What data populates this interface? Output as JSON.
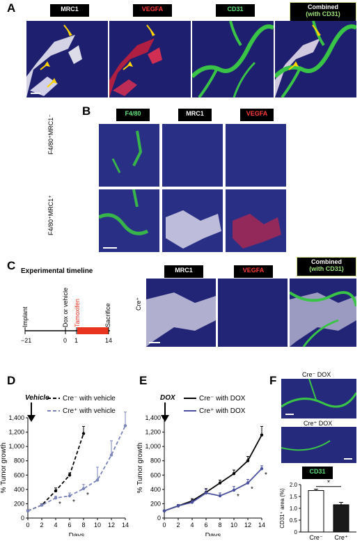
{
  "panelA": {
    "letter": "A",
    "labels": [
      "MRC1",
      "VEGFA",
      "CD31",
      "Combined",
      "(with CD31)"
    ]
  },
  "panelB": {
    "letter": "B",
    "labels": [
      "F4/80",
      "MRC1",
      "VEGFA"
    ],
    "rows": [
      "F4/80⁺MRC1⁻",
      "F4/80⁺MRC1⁺"
    ]
  },
  "panelC": {
    "letter": "C",
    "timeline_title": "Experimental timeline",
    "events": [
      "Implant",
      "Dox or vehicle",
      "Tamoxifen",
      "Sacrifice"
    ],
    "ticks": [
      "−21",
      "0",
      "1",
      "14"
    ],
    "labels": [
      "MRC1",
      "VEGFA",
      "Combined",
      "(with CD31)"
    ],
    "row": "Cre⁺"
  },
  "panelD": {
    "letter": "D",
    "arrow_label": "Vehicle",
    "legend": [
      "Cre⁻ with vehicle",
      "Cre⁺ with vehicle"
    ]
  },
  "panelE": {
    "letter": "E",
    "arrow_label": "DOX",
    "legend": [
      "Cre⁻ with DOX",
      "Cre⁺ with DOX"
    ]
  },
  "panelF": {
    "letter": "F",
    "labels": [
      "Cre⁻ DOX",
      "Cre⁺ DOX",
      "CD31"
    ]
  },
  "chart_data": [
    {
      "type": "line",
      "panel": "D",
      "xlabel": "Days",
      "ylabel": "% Tumor growth",
      "xlim": [
        0,
        14
      ],
      "ylim": [
        0,
        1400
      ],
      "xticks": [
        "0",
        "2",
        "4",
        "6",
        "8",
        "10",
        "12",
        "14"
      ],
      "yticks": [
        "0",
        "200",
        "400",
        "600",
        "800",
        "1,000",
        "1,200",
        "1,400"
      ],
      "series": [
        {
          "name": "Cre⁻ with vehicle",
          "color": "#000000",
          "dash": true,
          "x": [
            0,
            2,
            4,
            6,
            8
          ],
          "y": [
            100,
            180,
            380,
            600,
            1180
          ],
          "err": [
            15,
            20,
            40,
            30,
            100
          ]
        },
        {
          "name": "Cre⁺ with vehicle",
          "color": "#7a84b8",
          "dash": true,
          "x": [
            0,
            2,
            4,
            6,
            8,
            10,
            12,
            14
          ],
          "y": [
            100,
            180,
            280,
            310,
            410,
            530,
            880,
            1290
          ],
          "err": [
            10,
            15,
            25,
            40,
            60,
            180,
            200,
            190
          ]
        }
      ],
      "significance": [
        {
          "x": 4,
          "label": "*"
        },
        {
          "x": 6,
          "label": "*"
        },
        {
          "x": 8,
          "label": "*"
        }
      ]
    },
    {
      "type": "line",
      "panel": "E",
      "xlabel": "Days",
      "ylabel": "% Tumor growth",
      "xlim": [
        0,
        14
      ],
      "ylim": [
        0,
        1400
      ],
      "xticks": [
        "0",
        "2",
        "4",
        "6",
        "8",
        "10",
        "12",
        "14"
      ],
      "yticks": [
        "0",
        "200",
        "400",
        "600",
        "800",
        "1,000",
        "1,200",
        "1,400"
      ],
      "series": [
        {
          "name": "Cre⁻ with DOX",
          "color": "#000000",
          "dash": false,
          "x": [
            0,
            2,
            4,
            6,
            8,
            10,
            12,
            14
          ],
          "y": [
            100,
            170,
            240,
            360,
            490,
            620,
            800,
            1160
          ],
          "err": [
            10,
            20,
            30,
            50,
            40,
            50,
            60,
            120
          ]
        },
        {
          "name": "Cre⁺ with DOX",
          "color": "#4a4f9c",
          "dash": false,
          "x": [
            0,
            2,
            4,
            6,
            8,
            10,
            12,
            14
          ],
          "y": [
            100,
            170,
            220,
            350,
            310,
            390,
            490,
            690
          ],
          "err": [
            10,
            20,
            25,
            50,
            40,
            50,
            50,
            40
          ]
        }
      ],
      "significance": [
        {
          "x": 10,
          "label": "*"
        },
        {
          "x": 12,
          "label": "*"
        },
        {
          "x": 14,
          "label": "*"
        }
      ]
    },
    {
      "type": "bar",
      "panel": "F",
      "categories": [
        "Cre⁻",
        "Cre⁺"
      ],
      "values": [
        1.75,
        1.15
      ],
      "err": [
        0.06,
        0.1
      ],
      "ylabel": "CD31⁺ area (%)",
      "ylim": [
        0,
        2.0
      ],
      "yticks": [
        "0",
        "0.5",
        "1.0",
        "1.5",
        "2.0"
      ],
      "significance": "*"
    }
  ]
}
